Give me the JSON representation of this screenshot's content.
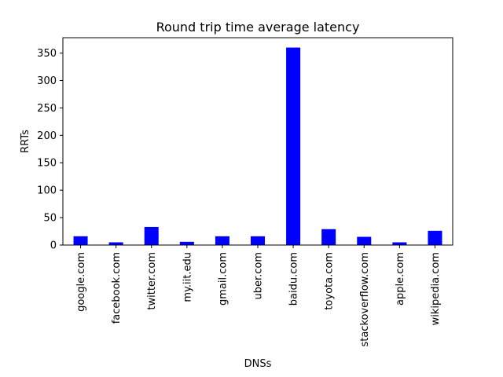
{
  "chart_data": {
    "type": "bar",
    "title": "Round trip time average latency",
    "xlabel": "DNSs",
    "ylabel": "RRTs",
    "categories": [
      "google.com",
      "facebook.com",
      "twitter.com",
      "my.iit.edu",
      "gmail.com",
      "uber.com",
      "baidu.com",
      "toyota.com",
      "stackoverflow.com",
      "apple.com",
      "wikipedia.com"
    ],
    "values": [
      16,
      5,
      33,
      6,
      16,
      16,
      360,
      29,
      15,
      5,
      26
    ],
    "ylim": [
      0,
      378
    ],
    "yticks": [
      0,
      50,
      100,
      150,
      200,
      250,
      300,
      350
    ],
    "bar_color": "#0000ff",
    "grid": false,
    "legend": "none"
  }
}
